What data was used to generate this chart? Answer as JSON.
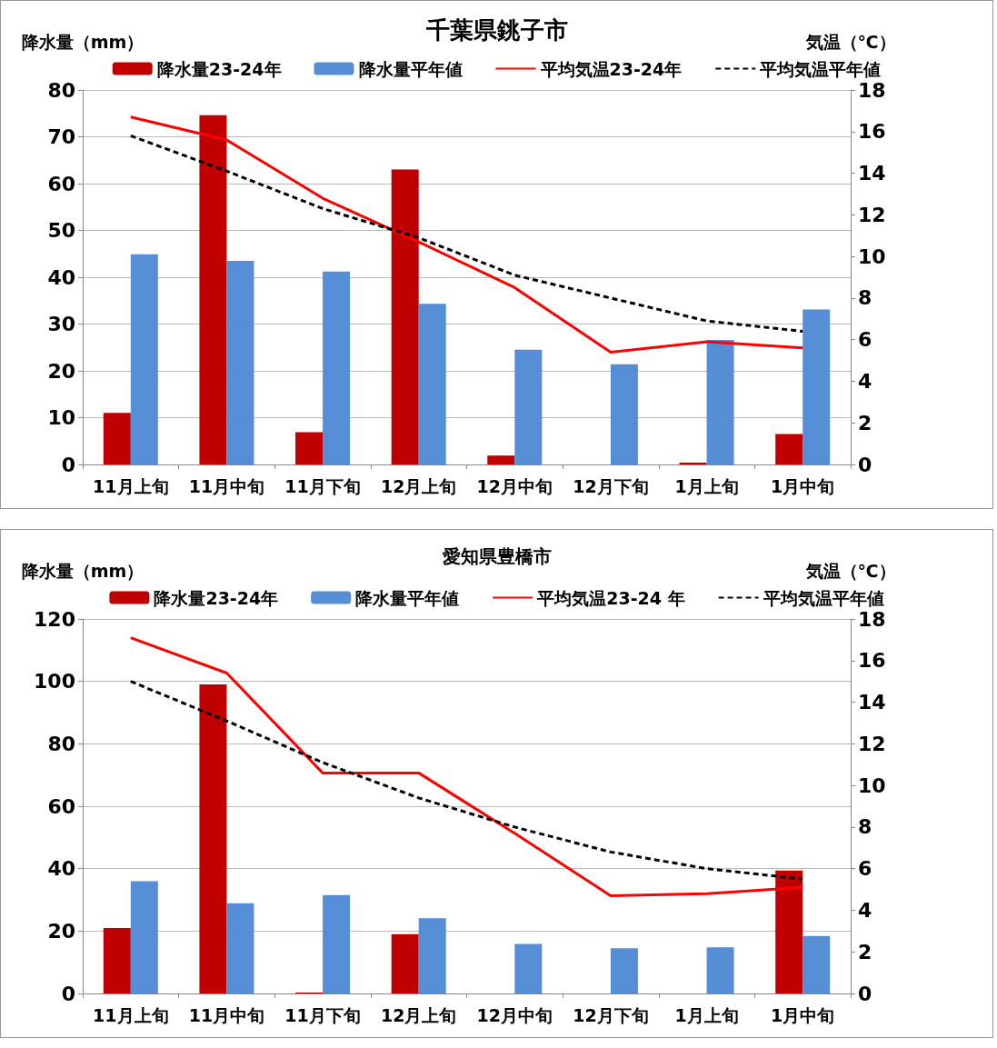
{
  "chart_data": [
    {
      "type": "bar",
      "title": "千葉県銚子市",
      "ylabel": "降水量（mm）",
      "y2label": "気温（℃）",
      "categories": [
        "11月上旬",
        "11月中旬",
        "11月下旬",
        "12月上旬",
        "12月中旬",
        "12月下旬",
        "1月上旬",
        "1月中旬"
      ],
      "ylim": [
        0,
        80
      ],
      "yticks": [
        0,
        10,
        20,
        30,
        40,
        50,
        60,
        70,
        80
      ],
      "y2lim": [
        0,
        18
      ],
      "y2ticks": [
        0,
        2,
        4,
        6,
        8,
        10,
        12,
        14,
        16,
        18
      ],
      "grid": "y",
      "legend": "top",
      "marker": "none",
      "series": [
        {
          "name": "降水量23-24年",
          "color": "#c00000",
          "values": [
            11.0,
            74.6,
            6.9,
            63.0,
            1.9,
            null,
            0.4,
            6.5
          ]
        },
        {
          "name": "降水量平年値",
          "color": "#558ed5",
          "values": [
            44.9,
            43.5,
            41.2,
            34.3,
            24.5,
            21.4,
            26.6,
            33.1
          ]
        },
        {
          "name": "平均気温23-24年",
          "type": "line",
          "axis": "y2",
          "line_style": "solid",
          "color": "#ff0000",
          "values": [
            16.7,
            15.6,
            12.8,
            10.7,
            8.5,
            5.4,
            5.9,
            5.6
          ]
        },
        {
          "name": "平均気温平年値",
          "type": "line",
          "axis": "y2",
          "line_style": "dashed",
          "color": "#000000",
          "values": [
            15.8,
            14.1,
            12.3,
            10.9,
            9.1,
            8.0,
            6.9,
            6.4
          ]
        }
      ]
    },
    {
      "type": "bar",
      "title": "愛知県豊橋市",
      "ylabel": "降水量（mm）",
      "y2label": "気温（℃）",
      "categories": [
        "11月上旬",
        "11月中旬",
        "11月下旬",
        "12月上旬",
        "12月中旬",
        "12月下旬",
        "1月上旬",
        "1月中旬"
      ],
      "ylim": [
        0,
        120
      ],
      "yticks": [
        0,
        20,
        40,
        60,
        80,
        100,
        120
      ],
      "y2lim": [
        0,
        18
      ],
      "y2ticks": [
        0,
        2,
        4,
        6,
        8,
        10,
        12,
        14,
        16,
        18
      ],
      "grid": "y",
      "legend": "top",
      "marker": "none",
      "series": [
        {
          "name": "降水量23-24年",
          "color": "#c00000",
          "values": [
            21.0,
            99.0,
            0.3,
            19.0,
            null,
            null,
            null,
            39.4
          ]
        },
        {
          "name": "降水量平年値",
          "color": "#558ed5",
          "values": [
            36.0,
            28.9,
            31.5,
            24.1,
            15.9,
            14.5,
            14.8,
            18.4
          ]
        },
        {
          "name": "平均気温23-24 年",
          "type": "line",
          "axis": "y2",
          "line_style": "solid",
          "color": "#ff0000",
          "values": [
            17.1,
            15.4,
            10.6,
            10.6,
            7.7,
            4.7,
            4.8,
            5.1
          ]
        },
        {
          "name": "平均気温平年値",
          "type": "line",
          "axis": "y2",
          "line_style": "dashed",
          "color": "#000000",
          "values": [
            15.0,
            13.1,
            11.1,
            9.4,
            8.0,
            6.8,
            6.0,
            5.5
          ]
        }
      ]
    }
  ]
}
